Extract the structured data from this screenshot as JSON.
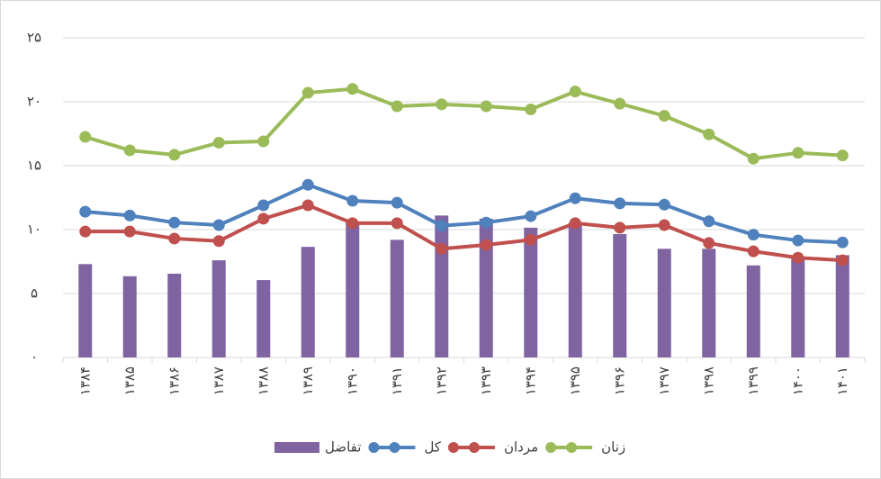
{
  "chart_data": {
    "type": "bar-line",
    "categories": [
      "۱۳۸۴",
      "۱۳۸۵",
      "۱۳۸۶",
      "۱۳۸۷",
      "۱۳۸۸",
      "۱۳۸۹",
      "۱۳۹۰",
      "۱۳۹۱",
      "۱۳۹۲",
      "۱۳۹۳",
      "۱۳۹۴",
      "۱۳۹۵",
      "۱۳۹۶",
      "۱۳۹۷",
      "۱۳۹۸",
      "۱۳۹۹",
      "۱۴۰۰",
      "۱۴۰۱"
    ],
    "series": [
      {
        "name": "تفاضل",
        "kind": "bar",
        "color": "#8064a2",
        "values": [
          7.3,
          6.35,
          6.55,
          7.6,
          6.05,
          8.65,
          10.55,
          9.2,
          11.1,
          10.85,
          10.15,
          10.55,
          9.65,
          8.5,
          8.5,
          7.2,
          7.9,
          8.0
        ]
      },
      {
        "name": "کل",
        "kind": "line",
        "color": "#4f81bd",
        "values": [
          11.4,
          11.1,
          10.55,
          10.35,
          11.9,
          13.5,
          12.25,
          12.1,
          10.3,
          10.55,
          11.05,
          12.45,
          12.05,
          11.95,
          10.65,
          9.6,
          9.15,
          9.0
        ]
      },
      {
        "name": "مردان",
        "kind": "line",
        "color": "#c0504d",
        "values": [
          9.85,
          9.85,
          9.3,
          9.1,
          10.85,
          11.9,
          10.5,
          10.5,
          8.5,
          8.8,
          9.2,
          10.5,
          10.15,
          10.35,
          8.95,
          8.3,
          7.8,
          7.6
        ]
      },
      {
        "name": "زنان",
        "kind": "line",
        "color": "#9bbb59",
        "values": [
          17.25,
          16.2,
          15.85,
          16.8,
          16.9,
          20.7,
          21.0,
          19.65,
          19.8,
          19.65,
          19.4,
          20.8,
          19.85,
          18.9,
          17.45,
          15.55,
          16.0,
          15.8
        ]
      }
    ],
    "ylim": [
      0,
      25
    ],
    "yticks": [
      {
        "value": 0,
        "label": "۰"
      },
      {
        "value": 5,
        "label": "۵"
      },
      {
        "value": 10,
        "label": "۱۰"
      },
      {
        "value": 15,
        "label": "۱۵"
      },
      {
        "value": 20,
        "label": "۲۰"
      },
      {
        "value": 25,
        "label": "۲۵"
      }
    ],
    "grid": true,
    "legend": "bottom"
  }
}
